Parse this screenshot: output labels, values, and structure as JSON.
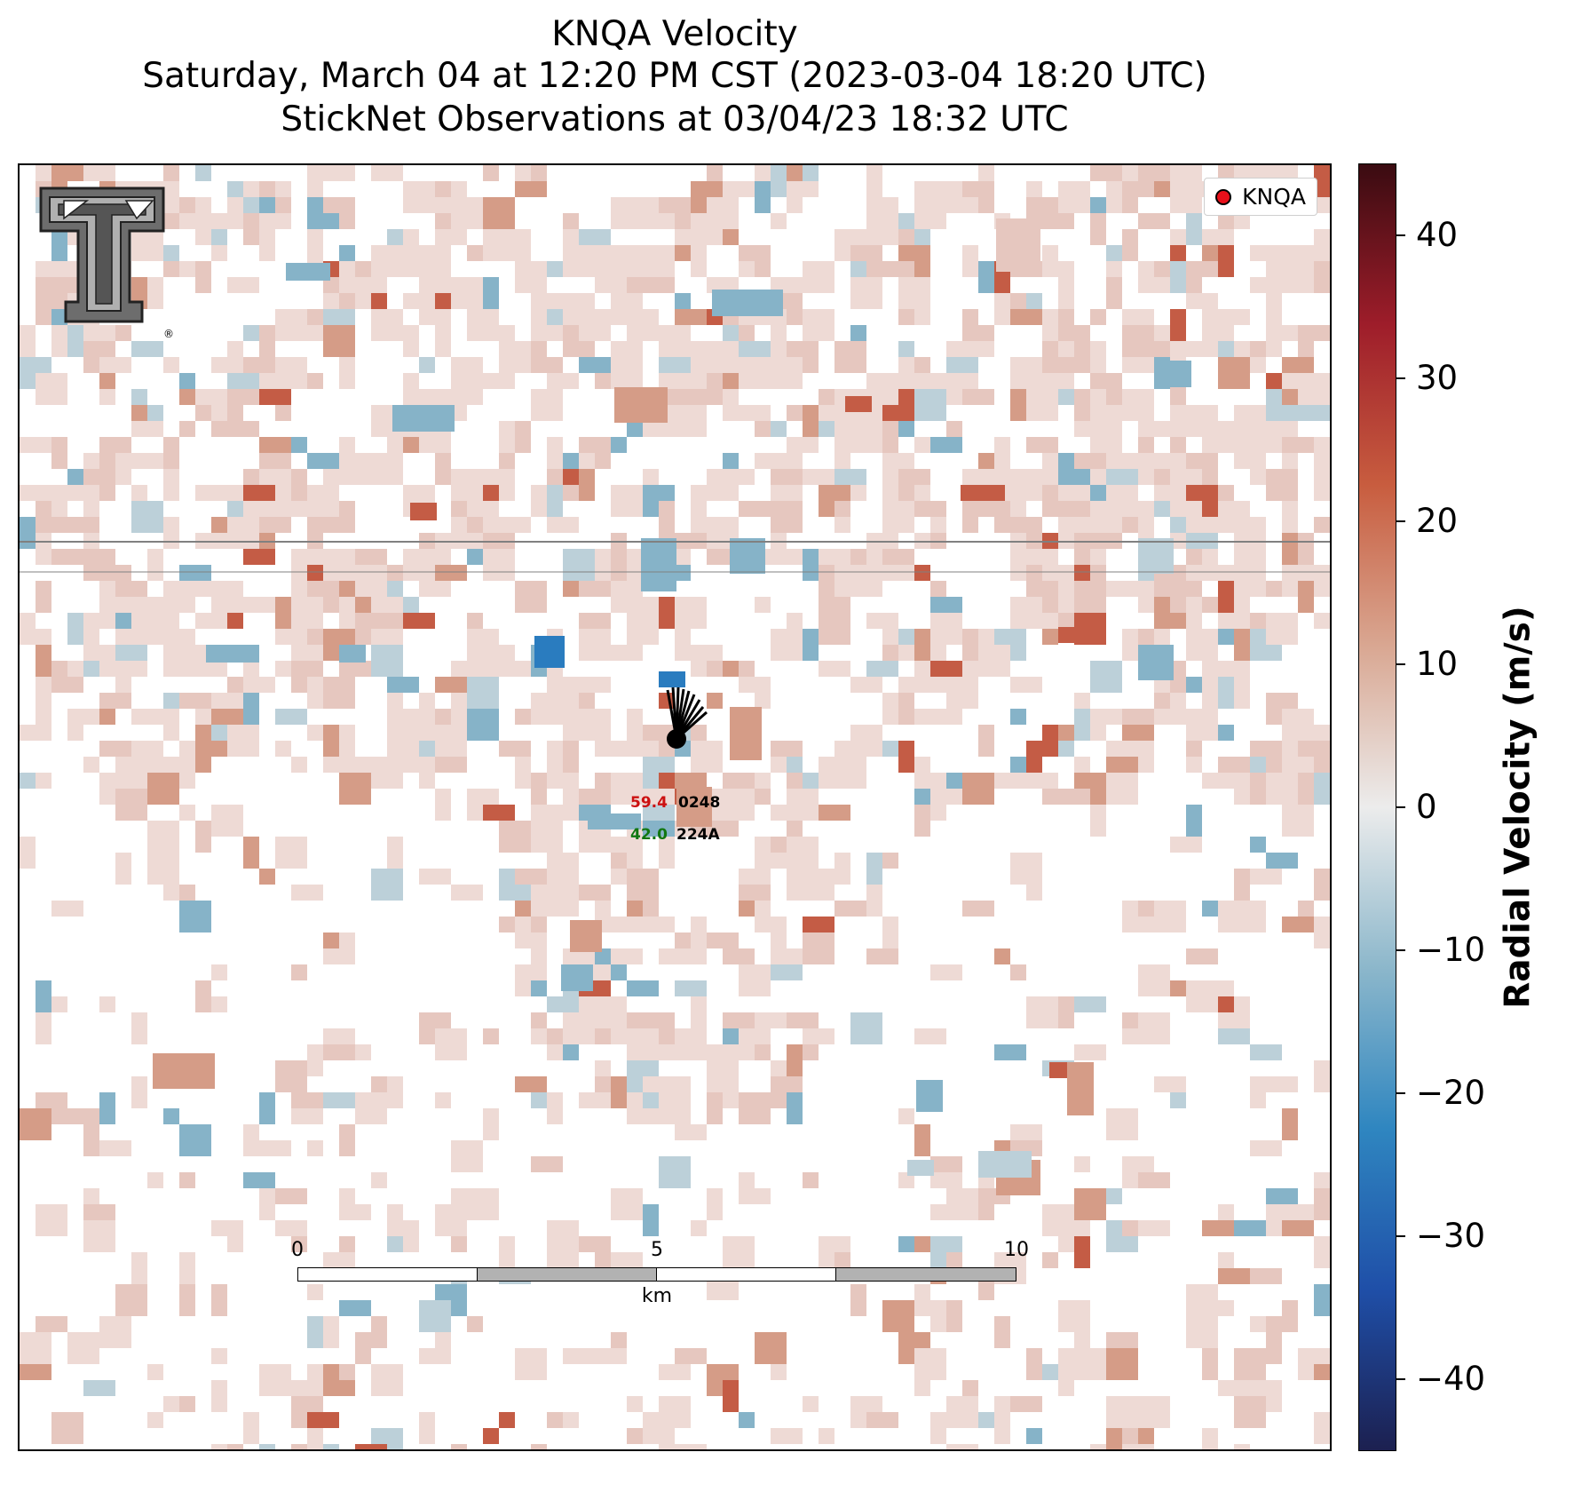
{
  "title": {
    "line1": "KNQA Velocity",
    "line2": "Saturday, March 04 at 12:20 PM CST (2023-03-04 18:20 UTC)",
    "line3": "StickNet Observations at 03/04/23 18:32 UTC"
  },
  "legend": {
    "label": "KNQA",
    "marker_color": "#e8101a"
  },
  "logo": {
    "name": "texas-tech-double-t-logo",
    "mark": "®"
  },
  "station": {
    "id_top": "0248",
    "id_bottom": "224A",
    "value_red": "59.4",
    "value_green": "42.0",
    "red_color": "#cc1111",
    "green_color": "#117711"
  },
  "scalebar": {
    "ticks": [
      "0",
      "5",
      "10"
    ],
    "unit": "km"
  },
  "colorbar": {
    "label": "Radial Velocity (m/s)",
    "min": -45,
    "max": 45,
    "ticks": [
      "40",
      "30",
      "20",
      "10",
      "0",
      "−10",
      "−20",
      "−30",
      "−40"
    ],
    "tick_values": [
      40,
      30,
      20,
      10,
      0,
      -10,
      -20,
      -30,
      -40
    ],
    "colors": [
      "#1c2050",
      "#1f4fa8",
      "#2f86c0",
      "#8cb7cb",
      "#ececec",
      "#d9a792",
      "#c85d3f",
      "#9e1d2a",
      "#3a0b11"
    ]
  },
  "map": {
    "background": "#ffffff",
    "gate_palette": {
      "light_pink": "#eedad5",
      "pink": "#e6c7bf",
      "salmon": "#d59c87",
      "red": "#c45c45",
      "light_blue": "#bcd0d9",
      "blue": "#86b3c8",
      "strong_blue": "#2a7cbf"
    },
    "road_color": "#808080"
  }
}
